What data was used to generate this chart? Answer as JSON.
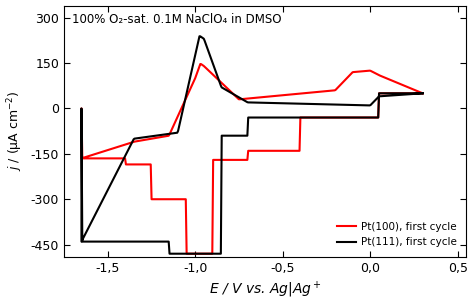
{
  "title_annotation": "100% O₂-sat. 0.1M NaClO₄ in DMSO",
  "xlabel": "$E$ / V vs. Ag|Ag$^+$",
  "ylabel": "$j$ / (μA cm$^{-2}$)",
  "xlim": [
    -1.75,
    0.55
  ],
  "ylim": [
    -490,
    340
  ],
  "xticks": [
    -1.5,
    -1.0,
    -0.5,
    0.0,
    0.5
  ],
  "yticks": [
    -450,
    -300,
    -150,
    0,
    150,
    300
  ],
  "xtick_labels": [
    "-1,5",
    "-1,0",
    "-0,5",
    "0,0",
    "0,5"
  ],
  "ytick_labels": [
    "-450",
    "-300",
    "-150",
    "0",
    "150",
    "300"
  ],
  "color_pt100": "#ff0000",
  "color_pt111": "#000000",
  "legend_pt100": "Pt(100), first cycle",
  "legend_pt111": "Pt(111), first cycle",
  "background": "#ffffff",
  "linewidth": 1.5
}
